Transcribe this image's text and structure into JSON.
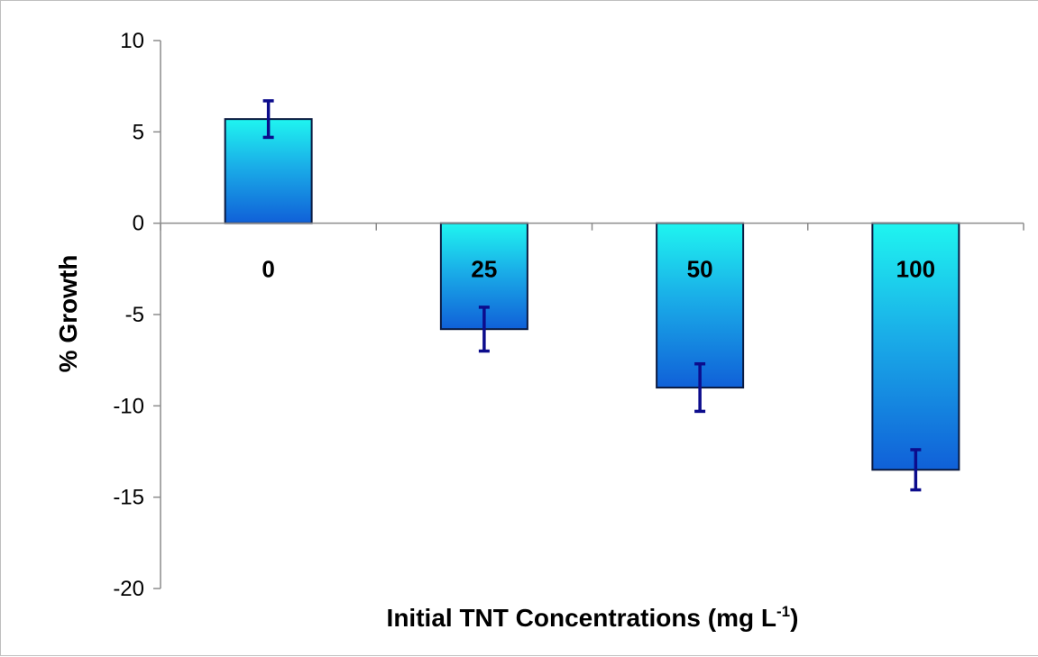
{
  "chart_data": {
    "type": "bar",
    "categories": [
      "0",
      "25",
      "50",
      "100"
    ],
    "values": [
      5.7,
      -5.8,
      -9.0,
      -13.5
    ],
    "error": [
      1.0,
      1.2,
      1.3,
      1.1
    ],
    "title": "",
    "xlabel": "Initial TNT Concentrations (mg L",
    "xlabel_sup": "-1",
    "xlabel_end": ")",
    "ylabel": "% Growth",
    "ylim": [
      -20,
      10
    ],
    "yticks": [
      10,
      5,
      0,
      -5,
      -10,
      -15,
      -20
    ],
    "ytick_labels": [
      "10",
      "5",
      "0",
      "-5",
      "-10",
      "-15",
      "-20"
    ],
    "grid": false,
    "legend": "none",
    "colors": {
      "bar_top": "#1ff5f0",
      "bar_bottom": "#1060d8",
      "bar_edge": "#0a1a40",
      "error_bar": "#0c0c8c",
      "axis": "#8c8c8c"
    }
  }
}
